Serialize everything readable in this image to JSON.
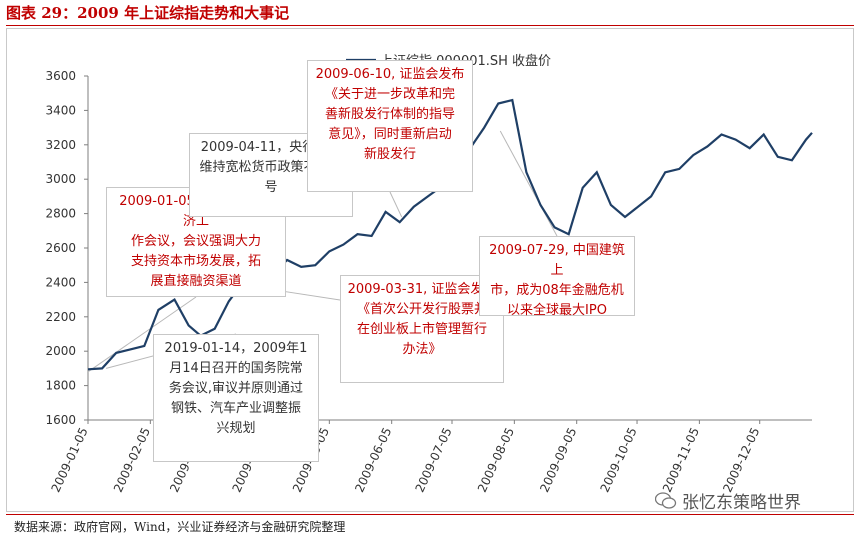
{
  "title": "图表 29：2009 年上证综指走势和大事记",
  "source": "数据来源：政府官网，Wind，兴业证券经济与金融研究院整理",
  "watermark": "张忆东策略世界",
  "colors": {
    "line": "#1f3f66",
    "accent": "#c00000",
    "axis": "#7f7f7f"
  },
  "chart_data": {
    "type": "line",
    "series": [
      {
        "name": "上证综指 000001.SH 收盘价",
        "x": [
          "2009-01-05",
          "2009-01-12",
          "2009-01-19",
          "2009-02-02",
          "2009-02-09",
          "2009-02-17",
          "2009-02-24",
          "2009-03-02",
          "2009-03-09",
          "2009-03-16",
          "2009-03-23",
          "2009-03-30",
          "2009-04-07",
          "2009-04-14",
          "2009-04-21",
          "2009-04-28",
          "2009-05-05",
          "2009-05-12",
          "2009-05-19",
          "2009-05-26",
          "2009-06-02",
          "2009-06-09",
          "2009-06-16",
          "2009-06-23",
          "2009-06-30",
          "2009-07-07",
          "2009-07-14",
          "2009-07-21",
          "2009-07-28",
          "2009-08-04",
          "2009-08-11",
          "2009-08-18",
          "2009-08-25",
          "2009-09-01",
          "2009-09-08",
          "2009-09-15",
          "2009-09-22",
          "2009-09-29",
          "2009-10-12",
          "2009-10-19",
          "2009-10-26",
          "2009-11-02",
          "2009-11-09",
          "2009-11-16",
          "2009-11-23",
          "2009-11-30",
          "2009-12-07",
          "2009-12-14",
          "2009-12-21",
          "2009-12-28",
          "2009-12-31"
        ],
        "values": [
          1895,
          1900,
          1990,
          2030,
          2240,
          2300,
          2150,
          2090,
          2130,
          2290,
          2400,
          2370,
          2450,
          2530,
          2490,
          2500,
          2580,
          2620,
          2680,
          2670,
          2810,
          2750,
          2840,
          2900,
          2960,
          3110,
          3180,
          3300,
          3440,
          3460,
          3040,
          2850,
          2720,
          2680,
          2950,
          3040,
          2850,
          2780,
          2900,
          3040,
          3060,
          3140,
          3190,
          3260,
          3230,
          3180,
          3260,
          3130,
          3110,
          3230,
          3270
        ]
      }
    ],
    "legend": "top-center",
    "ylim": [
      1600,
      3600
    ],
    "yticks": [
      1600,
      1800,
      2000,
      2200,
      2400,
      2600,
      2800,
      3000,
      3200,
      3400,
      3600
    ],
    "xticks": [
      "2009-01-05",
      "2009-02-05",
      "2009-03-05",
      "2009-04-05",
      "2009-05-05",
      "2009-06-05",
      "2009-07-05",
      "2009-08-05",
      "2009-09-05",
      "2009-10-05",
      "2009-11-05",
      "2009-12-05"
    ],
    "xlim": [
      "2009-01-05",
      "2009-12-31"
    ],
    "grid": false,
    "annotations": [
      {
        "id": "jan5",
        "style": "red",
        "date": "2009-01-05",
        "value": 1880,
        "text": "2009-01-05，召开中央经济工\n作会议，会议强调大力\n支持资本市场发展，拓\n展直接融资渠道"
      },
      {
        "id": "jan14",
        "style": "dark",
        "date": "2009-01-14",
        "value": 1900,
        "text": "2019-01-14，2009年1\n月14日召开的国务院常\n务会议,审议并原则通过\n钢铁、汽车产业调整振\n兴规划"
      },
      {
        "id": "apr11",
        "style": "dark",
        "date": "2009-04-11",
        "value": 2450,
        "text": "2009-04-11，央行坚持\n维持宽松货币政策不动摇\n号"
      },
      {
        "id": "mar31",
        "style": "red",
        "date": "2009-03-31",
        "value": 2370,
        "text": "2009-03-31, 证监会发布\n《首次公开发行股票并\n在创业板上市管理暂行\n办法》"
      },
      {
        "id": "jun10",
        "style": "red",
        "date": "2009-06-10",
        "value": 2780,
        "text": "2009-06-10, 证监会发布\n《关于进一步改革和完\n善新股发行体制的指导\n意见》，同时重新启动\n新股发行"
      },
      {
        "id": "jul29",
        "style": "red",
        "date": "2009-07-29",
        "value": 3280,
        "text": "2009-07-29, 中国建筑上\n市，成为08年金融危机\n以来全球最大IPO"
      }
    ]
  }
}
